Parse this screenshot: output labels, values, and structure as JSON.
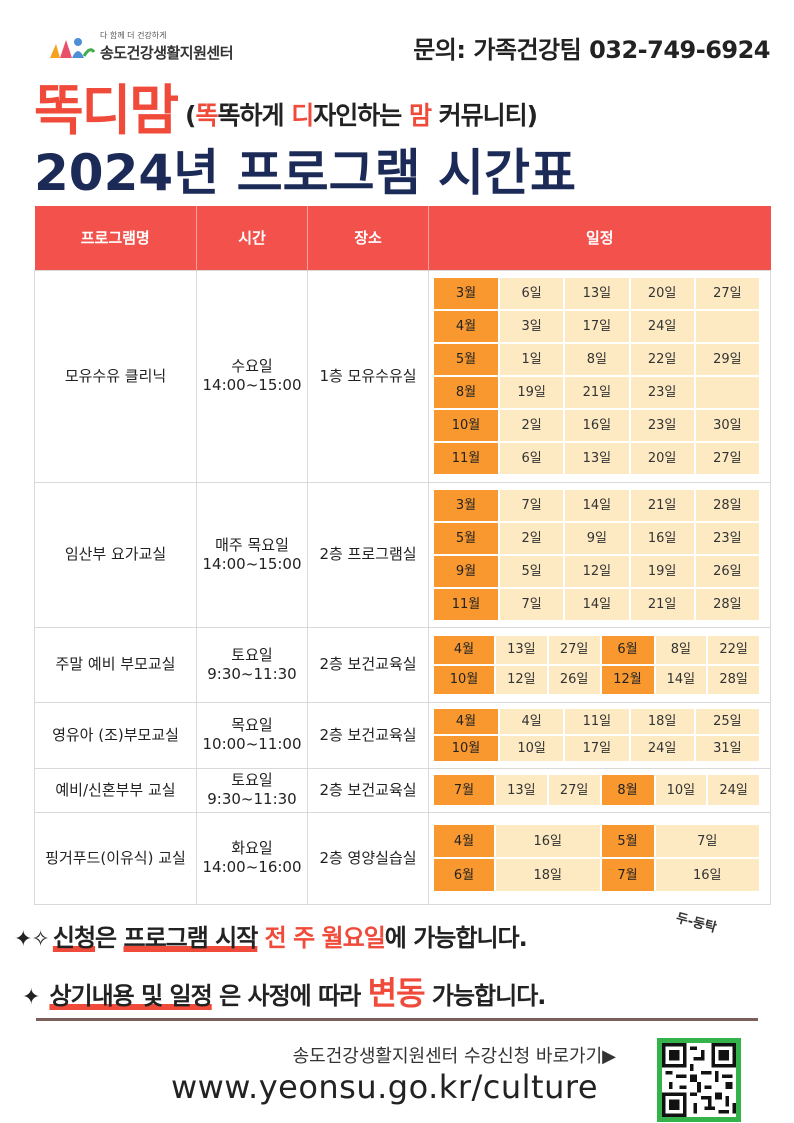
{
  "header": {
    "logo_tagline": "다 함께 더 건강하게",
    "logo_name": "송도건강생활지원센터",
    "contact": "문의: 가족건강팀 032-749-6924"
  },
  "headline": {
    "brand": "똑디맘",
    "tagline_open": "(",
    "tagline_hl1": "똑",
    "tagline_t1": "똑하게 ",
    "tagline_hl2": "디",
    "tagline_t2": "자인하는 ",
    "tagline_hl3": "맘",
    "tagline_t3": " 커뮤니티)"
  },
  "title": "2024년 프로그램 시간표",
  "table": {
    "columns": [
      "프로그램명",
      "시간",
      "장소",
      "일정"
    ],
    "rows": [
      {
        "name": "모유수유 클리닉",
        "day": "수요일",
        "time": "14:00~15:00",
        "place": "1층 모유수유실",
        "schedule": [
          [
            "3월",
            "6일",
            "13일",
            "20일",
            "27일"
          ],
          [
            "4월",
            "3일",
            "17일",
            "24일",
            ""
          ],
          [
            "5월",
            "1일",
            "8일",
            "22일",
            "29일"
          ],
          [
            "8월",
            "19일",
            "21일",
            "23일",
            ""
          ],
          [
            "10월",
            "2일",
            "16일",
            "23일",
            "30일"
          ],
          [
            "11월",
            "6일",
            "13일",
            "20일",
            "27일"
          ]
        ]
      },
      {
        "name": "임산부 요가교실",
        "day": "매주 목요일",
        "time": "14:00~15:00",
        "place": "2층 프로그램실",
        "schedule": [
          [
            "3월",
            "7일",
            "14일",
            "21일",
            "28일"
          ],
          [
            "5월",
            "2일",
            "9일",
            "16일",
            "23일"
          ],
          [
            "9월",
            "5일",
            "12일",
            "19일",
            "26일"
          ],
          [
            "11월",
            "7일",
            "14일",
            "21일",
            "28일"
          ]
        ]
      },
      {
        "name": "주말 예비 부모교실",
        "day": "토요일",
        "time": "9:30~11:30",
        "place": "2층 보건교육실",
        "schedule": [
          [
            "4월",
            "13일",
            "27일",
            "6월",
            "8일",
            "22일"
          ],
          [
            "10월",
            "12일",
            "26일",
            "12월",
            "14일",
            "28일"
          ]
        ]
      },
      {
        "name": "영유아 (조)부모교실",
        "day": "목요일",
        "time": "10:00~11:00",
        "place": "2층 보건교육실",
        "schedule": [
          [
            "4월",
            "4일",
            "11일",
            "18일",
            "25일"
          ],
          [
            "10월",
            "10일",
            "17일",
            "24일",
            "31일"
          ]
        ]
      },
      {
        "name": "예비/신혼부부 교실",
        "day": "토요일",
        "time": "9:30~11:30",
        "place": "2층 보건교육실",
        "schedule": [
          [
            "7월",
            "13일",
            "27일",
            "8월",
            "10일",
            "24일"
          ]
        ]
      },
      {
        "name": "핑거푸드(이유식) 교실",
        "day": "화요일",
        "time": "14:00~16:00",
        "place": "2층 영양실습실",
        "schedule": [
          [
            "4월",
            "16일",
            "5월",
            "7일"
          ],
          [
            "6월",
            "18일",
            "7월",
            "16일"
          ]
        ]
      }
    ]
  },
  "notices": {
    "n1_a": "신청",
    "n1_b": "은 ",
    "n1_c": "프로그램 시작",
    "n1_d": " 전 주 월요일",
    "n1_e": "에 가능합니다.",
    "sticker": "두-둥탁",
    "n2_a": "상기내용 및 일정",
    "n2_b": " 은 사정에 따라 ",
    "n2_c": "변동",
    "n2_d": " 가능합니다."
  },
  "footer": {
    "text": "송도건강생활지원센터 수강신청 바로가기▶",
    "url": "www.yeonsu.go.kr/culture"
  },
  "colors": {
    "accent_red": "#f04a3a",
    "navy": "#1c2a57",
    "month_orange": "#f8982f",
    "date_cream": "#fdeac3",
    "qr_green": "#34b34a"
  }
}
